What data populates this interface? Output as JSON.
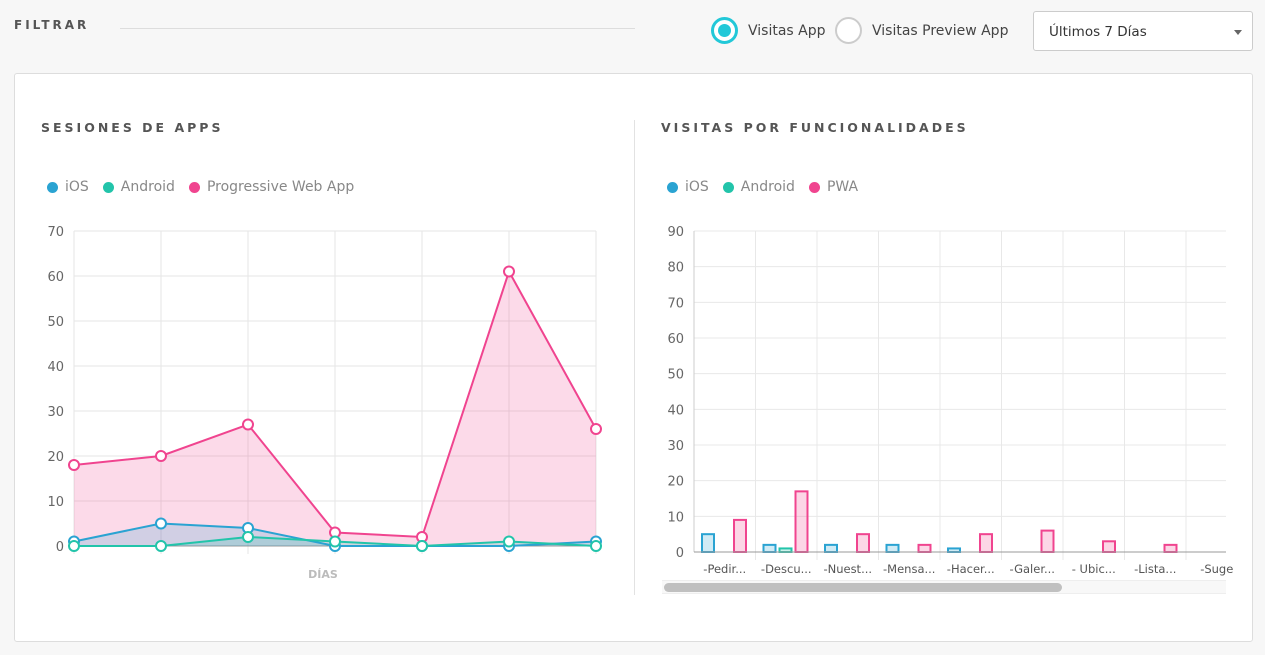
{
  "filter": {
    "label": "FILTRAR",
    "radio_app": "Visitas App",
    "radio_preview": "Visitas Preview App",
    "selected_radio": "Visitas App",
    "range": "Últimos 7 Días"
  },
  "colors": {
    "ios": "#2aa3d2",
    "android": "#22c4aa",
    "pwa": "#f0448f",
    "accent": "#22c8d8"
  },
  "chart_data": [
    {
      "type": "line",
      "title": "SESIONES DE APPS",
      "xlabel": "DÍAS",
      "ylabel": "",
      "ylim": [
        0,
        70
      ],
      "yticks": [
        "0",
        "10",
        "20",
        "30",
        "40",
        "50",
        "60",
        "70"
      ],
      "legend": [
        "iOS",
        "Android",
        "Progressive Web App"
      ],
      "series": [
        {
          "name": "iOS",
          "values": [
            1,
            5,
            4,
            0,
            0,
            0,
            1
          ]
        },
        {
          "name": "Android",
          "values": [
            0,
            0,
            2,
            1,
            0,
            1,
            0
          ]
        },
        {
          "name": "Progressive Web App",
          "values": [
            18,
            20,
            27,
            3,
            2,
            61,
            26
          ]
        }
      ]
    },
    {
      "type": "bar",
      "title": "VISITAS POR FUNCIONALIDADES",
      "ylim": [
        0,
        90
      ],
      "yticks": [
        "0",
        "10",
        "20",
        "30",
        "40",
        "50",
        "60",
        "70",
        "80",
        "90"
      ],
      "legend": [
        "iOS",
        "Android",
        "PWA"
      ],
      "categories": [
        "-Pedir...",
        "-Descu...",
        "-Nuest...",
        "-Mensa...",
        "-Hacer...",
        "-Galer...",
        "- Ubic...",
        "-Lista...",
        "-Suge"
      ],
      "series": [
        {
          "name": "iOS",
          "values": [
            5,
            2,
            2,
            2,
            1,
            0,
            0,
            0,
            0
          ]
        },
        {
          "name": "Android",
          "values": [
            0,
            1,
            0,
            0,
            0,
            0,
            0,
            0,
            0
          ]
        },
        {
          "name": "PWA",
          "values": [
            9,
            17,
            5,
            2,
            5,
            6,
            3,
            2,
            0
          ]
        }
      ]
    }
  ]
}
